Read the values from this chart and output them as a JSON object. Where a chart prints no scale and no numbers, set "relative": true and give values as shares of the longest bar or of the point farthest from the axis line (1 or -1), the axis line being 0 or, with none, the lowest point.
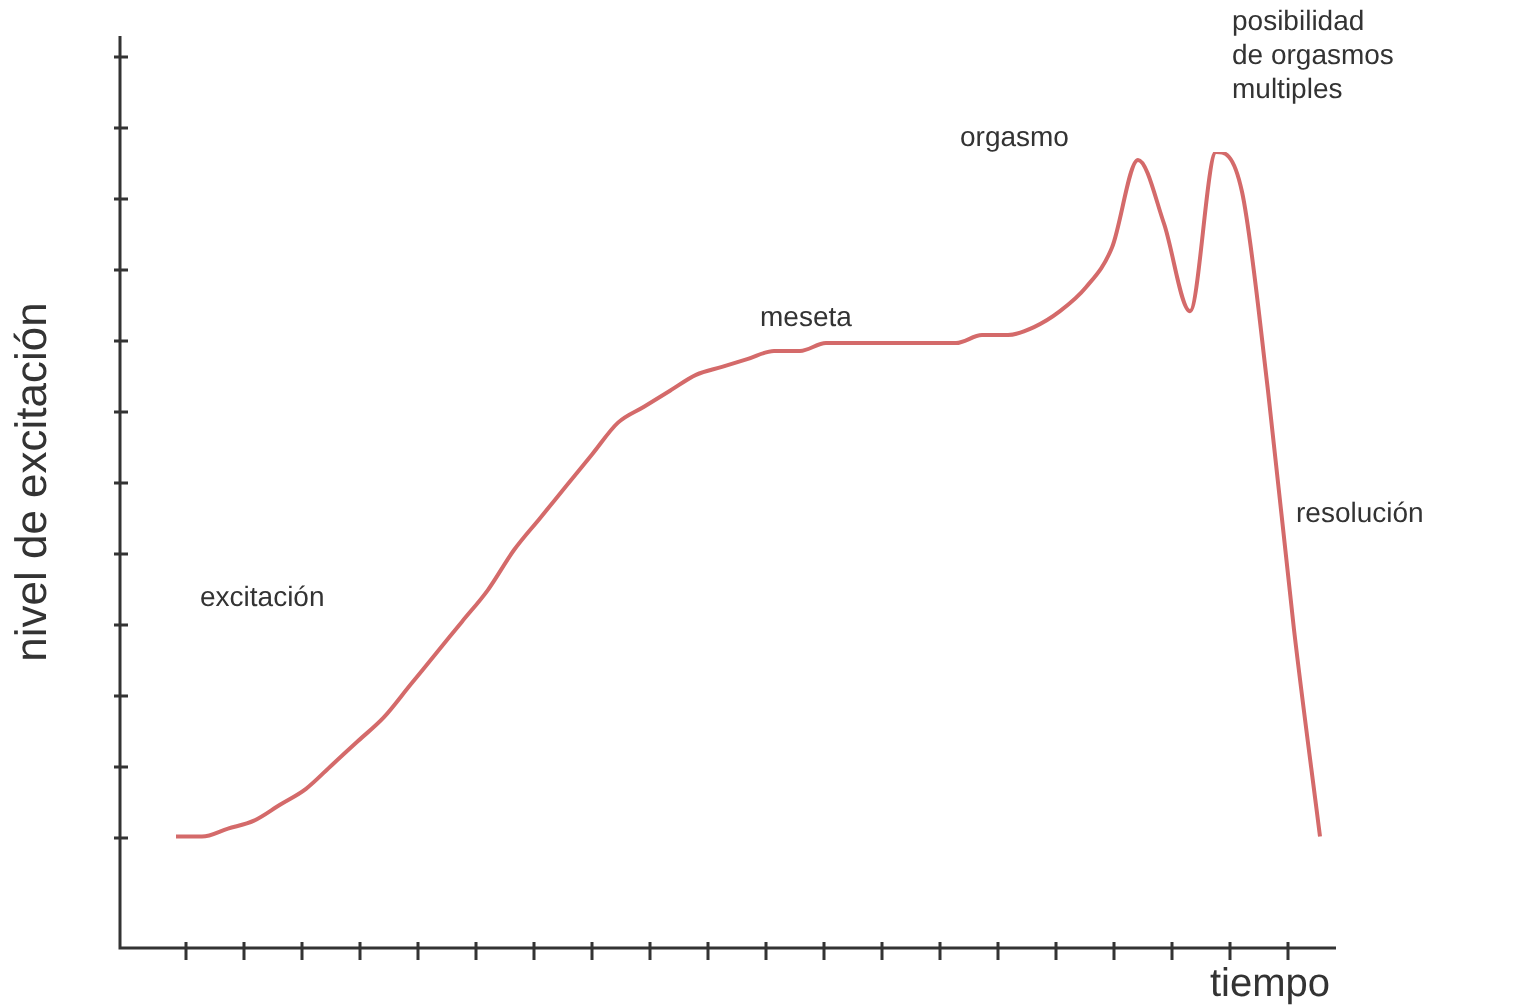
{
  "chart_data": {
    "type": "line",
    "relative": true,
    "xlabel": "tiempo",
    "ylabel": "nivel de excitación",
    "color": "#d46a6a",
    "marker": "none",
    "legend": false,
    "categories": [
      null,
      null,
      null,
      null,
      null,
      null,
      null,
      null,
      null,
      null,
      null,
      null,
      null,
      null,
      null,
      null,
      null,
      null,
      null,
      null,
      null,
      null,
      null,
      null,
      null,
      null,
      null,
      null,
      null,
      null,
      null,
      null,
      null,
      null,
      null,
      null,
      null,
      null,
      null,
      null,
      null,
      null,
      null,
      null,
      null
    ],
    "values": [
      0.14,
      0.14,
      0.15,
      0.16,
      0.18,
      0.2,
      0.23,
      0.26,
      0.29,
      0.33,
      0.37,
      0.41,
      0.45,
      0.5,
      0.54,
      0.58,
      0.62,
      0.66,
      0.68,
      0.7,
      0.72,
      0.73,
      0.74,
      0.75,
      0.75,
      0.76,
      0.76,
      0.76,
      0.76,
      0.76,
      0.76,
      0.77,
      0.77,
      0.78,
      0.8,
      0.83,
      0.88,
      0.99,
      0.91,
      0.8,
      1,
      0.95,
      0.7,
      0.4,
      0.14
    ],
    "annotations": [
      "excitación",
      "meseta",
      "orgasmo",
      "posibilidad\nde orgasmos\nmultiples",
      "resolución"
    ]
  }
}
